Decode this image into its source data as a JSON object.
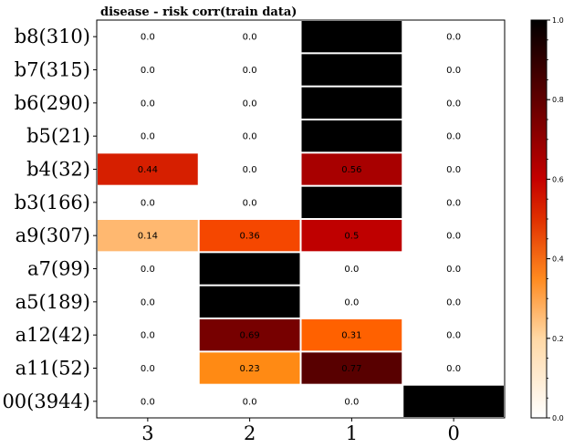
{
  "chart_data": {
    "type": "heatmap",
    "title": "disease - risk corr(train data)",
    "x_categories": [
      "3",
      "2",
      "1",
      "0"
    ],
    "y_categories": [
      "b8(310)",
      "b7(315)",
      "b6(290)",
      "b5(21)",
      "b4(32)",
      "b3(166)",
      "a9(307)",
      "a7(99)",
      "a5(189)",
      "a12(42)",
      "a11(52)",
      "00(3944)"
    ],
    "values": [
      [
        0.0,
        0.0,
        1.0,
        0.0
      ],
      [
        0.0,
        0.0,
        1.0,
        0.0
      ],
      [
        0.0,
        0.0,
        1.0,
        0.0
      ],
      [
        0.0,
        0.0,
        1.0,
        0.0
      ],
      [
        0.44,
        0.0,
        0.56,
        0.0
      ],
      [
        0.0,
        0.0,
        1.0,
        0.0
      ],
      [
        0.14,
        0.36,
        0.5,
        0.0
      ],
      [
        0.0,
        1.0,
        0.0,
        0.0
      ],
      [
        0.0,
        1.0,
        0.0,
        0.0
      ],
      [
        0.0,
        0.69,
        0.31,
        0.0
      ],
      [
        0.0,
        0.23,
        0.77,
        0.0
      ],
      [
        0.0,
        0.0,
        0.0,
        1.0
      ]
    ],
    "labels": [
      [
        "0.0",
        "0.0",
        "",
        "0.0"
      ],
      [
        "0.0",
        "0.0",
        "",
        "0.0"
      ],
      [
        "0.0",
        "0.0",
        "",
        "0.0"
      ],
      [
        "0.0",
        "0.0",
        "",
        "0.0"
      ],
      [
        "0.44",
        "0.0",
        "0.56",
        "0.0"
      ],
      [
        "0.0",
        "0.0",
        "",
        "0.0"
      ],
      [
        "0.14",
        "0.36",
        "0.5",
        "0.0"
      ],
      [
        "0.0",
        "",
        "0.0",
        "0.0"
      ],
      [
        "0.0",
        "",
        "0.0",
        "0.0"
      ],
      [
        "0.0",
        "0.69",
        "0.31",
        "0.0"
      ],
      [
        "0.0",
        "0.23",
        "0.77",
        "0.0"
      ],
      [
        "0.0",
        "0.0",
        "0.0",
        ""
      ]
    ],
    "colormap": "gist_heat_r",
    "colorbar": {
      "range": [
        0.0,
        1.0
      ],
      "ticks": [
        0.0,
        0.2,
        0.4,
        0.6,
        0.8,
        1.0
      ],
      "tick_labels": [
        "0.0",
        "0.2",
        "0.4",
        "0.6",
        "0.8",
        "1.0"
      ]
    },
    "grid": false,
    "legend": "colorbar-right"
  }
}
